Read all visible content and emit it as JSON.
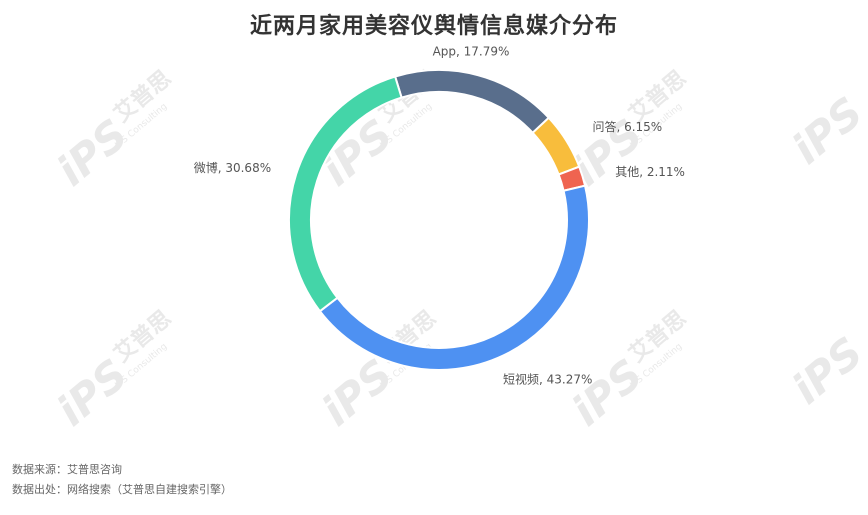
{
  "title": "近两月家用美容仪舆情信息媒介分布",
  "chart_data": {
    "type": "pie",
    "donut": true,
    "title": "近两月家用美容仪舆情信息媒介分布",
    "slices": [
      {
        "label": "App",
        "value": 17.79,
        "display": "App, 17.79%",
        "color": "#596e8c"
      },
      {
        "label": "问答",
        "value": 6.15,
        "display": "问答, 6.15%",
        "color": "#f8bd3c"
      },
      {
        "label": "其他",
        "value": 2.11,
        "display": "其他, 2.11%",
        "color": "#ef6450"
      },
      {
        "label": "短视频",
        "value": 43.27,
        "display": "短视频, 43.27%",
        "color": "#4e91f2"
      },
      {
        "label": "微博",
        "value": 30.68,
        "display": "微博, 30.68%",
        "color": "#44d5a8"
      }
    ]
  },
  "source": {
    "line1": "数据来源：艾普思咨询",
    "line2": "数据出处：网络搜索（艾普思自建搜索引擎）"
  },
  "watermark": {
    "logo": "iPS",
    "cn": "艾普思",
    "en": "IPS Consulting"
  }
}
